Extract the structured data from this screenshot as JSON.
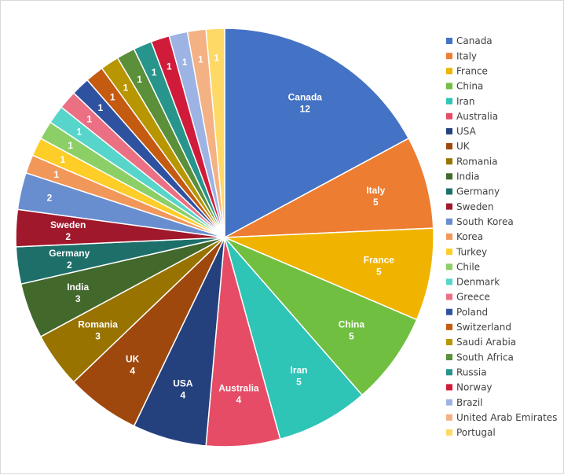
{
  "chart_data": {
    "type": "pie",
    "title": "",
    "legend_position": "right",
    "start_angle_deg": 0,
    "direction": "clockwise",
    "show_values": true,
    "slices": [
      {
        "label": "Canada",
        "value": 12,
        "color": "#4472C4",
        "show_name": true
      },
      {
        "label": "Italy",
        "value": 5,
        "color": "#ED7D31",
        "show_name": true
      },
      {
        "label": "France",
        "value": 5,
        "color": "#F0B400",
        "show_name": true
      },
      {
        "label": "China",
        "value": 5,
        "color": "#70BF41",
        "show_name": true
      },
      {
        "label": "Iran",
        "value": 5,
        "color": "#2EC4B6",
        "show_name": true
      },
      {
        "label": "Australia",
        "value": 4,
        "color": "#E64C65",
        "show_name": true
      },
      {
        "label": "USA",
        "value": 4,
        "color": "#24417E",
        "show_name": true
      },
      {
        "label": "UK",
        "value": 4,
        "color": "#9E480E",
        "show_name": true
      },
      {
        "label": "Romania",
        "value": 3,
        "color": "#997300",
        "show_name": true
      },
      {
        "label": "India",
        "value": 3,
        "color": "#43682B",
        "show_name": true
      },
      {
        "label": "Germany",
        "value": 2,
        "color": "#1E6F6A",
        "show_name": true
      },
      {
        "label": "Sweden",
        "value": 2,
        "color": "#A0182B",
        "show_name": true
      },
      {
        "label": "South Korea",
        "value": 2,
        "color": "#698ED0",
        "show_name": false
      },
      {
        "label": "Korea",
        "value": 1,
        "color": "#F1975A",
        "show_name": false
      },
      {
        "label": "Turkey",
        "value": 1,
        "color": "#FFCD28",
        "show_name": false
      },
      {
        "label": "Chile",
        "value": 1,
        "color": "#8CCF66",
        "show_name": false
      },
      {
        "label": "Denmark",
        "value": 1,
        "color": "#58D5CB",
        "show_name": false
      },
      {
        "label": "Greece",
        "value": 1,
        "color": "#EB7084",
        "show_name": false
      },
      {
        "label": "Poland",
        "value": 1,
        "color": "#2F52A0",
        "show_name": false
      },
      {
        "label": "Switzerland",
        "value": 1,
        "color": "#C55A11",
        "show_name": false
      },
      {
        "label": "Saudi Arabia",
        "value": 1,
        "color": "#B89600",
        "show_name": false
      },
      {
        "label": "South Africa",
        "value": 1,
        "color": "#5B8F3A",
        "show_name": false
      },
      {
        "label": "Russia",
        "value": 1,
        "color": "#27958C",
        "show_name": false
      },
      {
        "label": "Norway",
        "value": 1,
        "color": "#D01C3A",
        "show_name": false
      },
      {
        "label": "Brazil",
        "value": 1,
        "color": "#9DB3E4",
        "show_name": false
      },
      {
        "label": "United Arab Emirates",
        "value": 1,
        "color": "#F4B183",
        "show_name": false
      },
      {
        "label": "Portugal",
        "value": 1,
        "color": "#FFD966",
        "show_name": false
      }
    ]
  }
}
